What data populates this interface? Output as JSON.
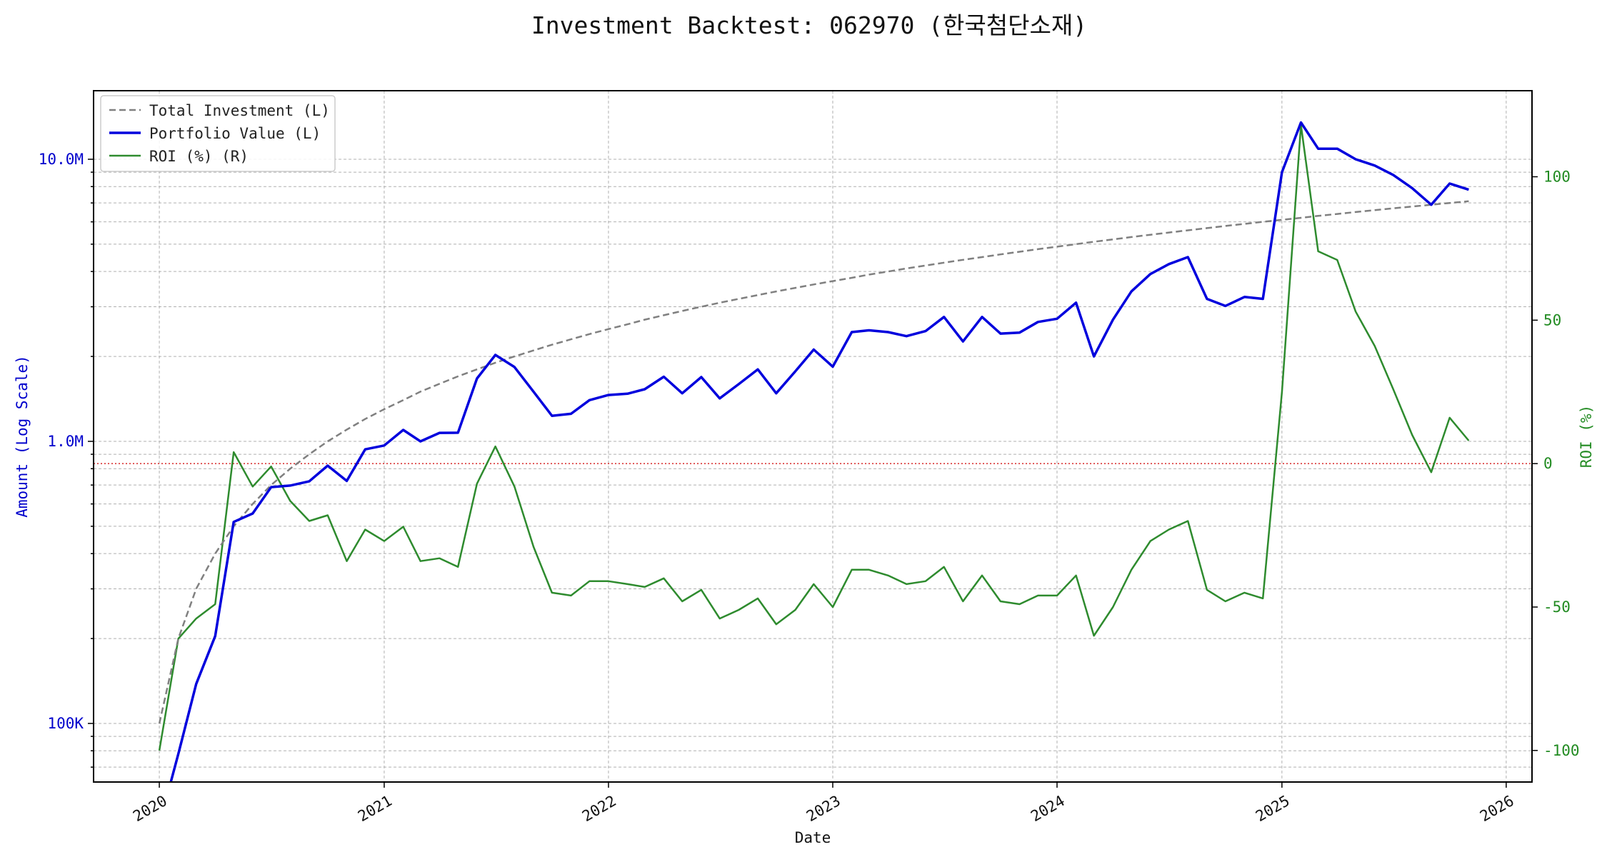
{
  "chart_data": {
    "type": "line",
    "title": "Investment Backtest: 062970 (한국첨단소재)",
    "xlabel": "Date",
    "ylabel_left": "Amount (Log Scale)",
    "ylabel_right": "ROI (%)",
    "x_ticks": [
      "2020",
      "2021",
      "2022",
      "2023",
      "2024",
      "2025",
      "2026"
    ],
    "x_range": [
      "2019-09-16",
      "2026-02-12"
    ],
    "y_left_scale": "log",
    "y_left_range": [
      62000,
      17500000
    ],
    "y_left_ticks": [
      {
        "value": 100000,
        "label": "100K"
      },
      {
        "value": 1000000,
        "label": "1.0M"
      },
      {
        "value": 10000000,
        "label": "10.0M"
      }
    ],
    "y_right_range": [
      -111,
      130
    ],
    "y_right_ticks": [
      -100,
      -50,
      0,
      50,
      100
    ],
    "grid": true,
    "legend_position": "upper left",
    "reference_line": {
      "axis": "right",
      "value": 0,
      "color": "#d62728",
      "style": "dotted"
    },
    "colors": {
      "total_investment": "#808080",
      "portfolio_value": "#0000dd",
      "roi": "#2e8b2e",
      "left_axis": "#0000cc",
      "right_axis": "#228b22"
    },
    "dates": [
      "2020-01-01",
      "2020-02-01",
      "2020-03-01",
      "2020-04-01",
      "2020-05-01",
      "2020-06-01",
      "2020-07-01",
      "2020-08-01",
      "2020-09-01",
      "2020-10-01",
      "2020-11-01",
      "2020-12-01",
      "2021-01-01",
      "2021-02-01",
      "2021-03-01",
      "2021-04-01",
      "2021-05-01",
      "2021-06-01",
      "2021-07-01",
      "2021-08-01",
      "2021-09-01",
      "2021-10-01",
      "2021-11-01",
      "2021-12-01",
      "2022-01-01",
      "2022-02-01",
      "2022-03-01",
      "2022-04-01",
      "2022-05-01",
      "2022-06-01",
      "2022-07-01",
      "2022-08-01",
      "2022-09-01",
      "2022-10-01",
      "2022-11-01",
      "2022-12-01",
      "2023-01-01",
      "2023-02-01",
      "2023-03-01",
      "2023-04-01",
      "2023-05-01",
      "2023-06-01",
      "2023-07-01",
      "2023-08-01",
      "2023-09-01",
      "2023-10-01",
      "2023-11-01",
      "2023-12-01",
      "2024-01-01",
      "2024-02-01",
      "2024-03-01",
      "2024-04-01",
      "2024-05-01",
      "2024-06-01",
      "2024-07-01",
      "2024-08-01",
      "2024-09-01",
      "2024-10-01",
      "2024-11-01",
      "2024-12-01",
      "2025-01-01",
      "2025-02-01",
      "2025-03-01",
      "2025-04-01",
      "2025-05-01",
      "2025-06-01",
      "2025-07-01",
      "2025-08-01",
      "2025-09-01",
      "2025-10-01",
      "2025-11-01"
    ],
    "series": [
      {
        "name": "Total Investment (L)",
        "axis": "left",
        "style": "dashed",
        "values": [
          100000,
          200000,
          300000,
          400000,
          500000,
          600000,
          700000,
          800000,
          900000,
          1000000,
          1100000,
          1200000,
          1300000,
          1400000,
          1500000,
          1600000,
          1700000,
          1800000,
          1900000,
          2000000,
          2100000,
          2200000,
          2300000,
          2400000,
          2500000,
          2600000,
          2700000,
          2800000,
          2900000,
          3000000,
          3100000,
          3200000,
          3300000,
          3400000,
          3500000,
          3600000,
          3700000,
          3800000,
          3900000,
          4000000,
          4100000,
          4200000,
          4300000,
          4400000,
          4500000,
          4600000,
          4700000,
          4800000,
          4900000,
          5000000,
          5100000,
          5200000,
          5300000,
          5400000,
          5500000,
          5600000,
          5700000,
          5800000,
          5900000,
          6000000,
          6100000,
          6200000,
          6300000,
          6400000,
          6500000,
          6600000,
          6700000,
          6800000,
          6900000,
          7000000,
          7100000
        ]
      },
      {
        "name": "Portfolio Value (L)",
        "axis": "left",
        "style": "solid",
        "values": [
          0,
          78000,
          138000,
          204000,
          518000,
          555000,
          688000,
          697000,
          722000,
          820000,
          724000,
          937000,
          967000,
          1098000,
          1000000,
          1072000,
          1073000,
          1670000,
          2025000,
          1835000,
          1500000,
          1232000,
          1252000,
          1400000,
          1460000,
          1475000,
          1530000,
          1695000,
          1480000,
          1690000,
          1420000,
          1595000,
          1800000,
          1480000,
          1770000,
          2115000,
          1840000,
          2440000,
          2475000,
          2440000,
          2360000,
          2460000,
          2760000,
          2260000,
          2760000,
          2410000,
          2430000,
          2650000,
          2720000,
          3100000,
          2000000,
          2700000,
          3400000,
          3920000,
          4250000,
          4500000,
          3200000,
          3020000,
          3250000,
          3200000,
          9000000,
          13500000,
          10900000,
          10900000,
          10000000,
          9500000,
          8800000,
          7900000,
          6900000,
          8200000,
          7800000
        ]
      },
      {
        "name": "ROI (%) (R)",
        "axis": "right",
        "style": "solid",
        "values": [
          -100,
          -61,
          -54,
          -49,
          4,
          -8,
          -1,
          -13,
          -20,
          -18,
          -34,
          -23,
          -27,
          -22,
          -34,
          -33,
          -36,
          -7,
          6,
          -8,
          -29,
          -45,
          -46,
          -41,
          -41,
          -42,
          -43,
          -40,
          -48,
          -44,
          -54,
          -51,
          -47,
          -56,
          -51,
          -42,
          -50,
          -37,
          -37,
          -39,
          -42,
          -41,
          -36,
          -48,
          -39,
          -48,
          -49,
          -46,
          -46,
          -39,
          -60,
          -50,
          -37,
          -27,
          -23,
          -20,
          -44,
          -48,
          -45,
          -47,
          25,
          118,
          74,
          71,
          53,
          41,
          26,
          10,
          -3,
          16,
          8
        ]
      }
    ]
  }
}
